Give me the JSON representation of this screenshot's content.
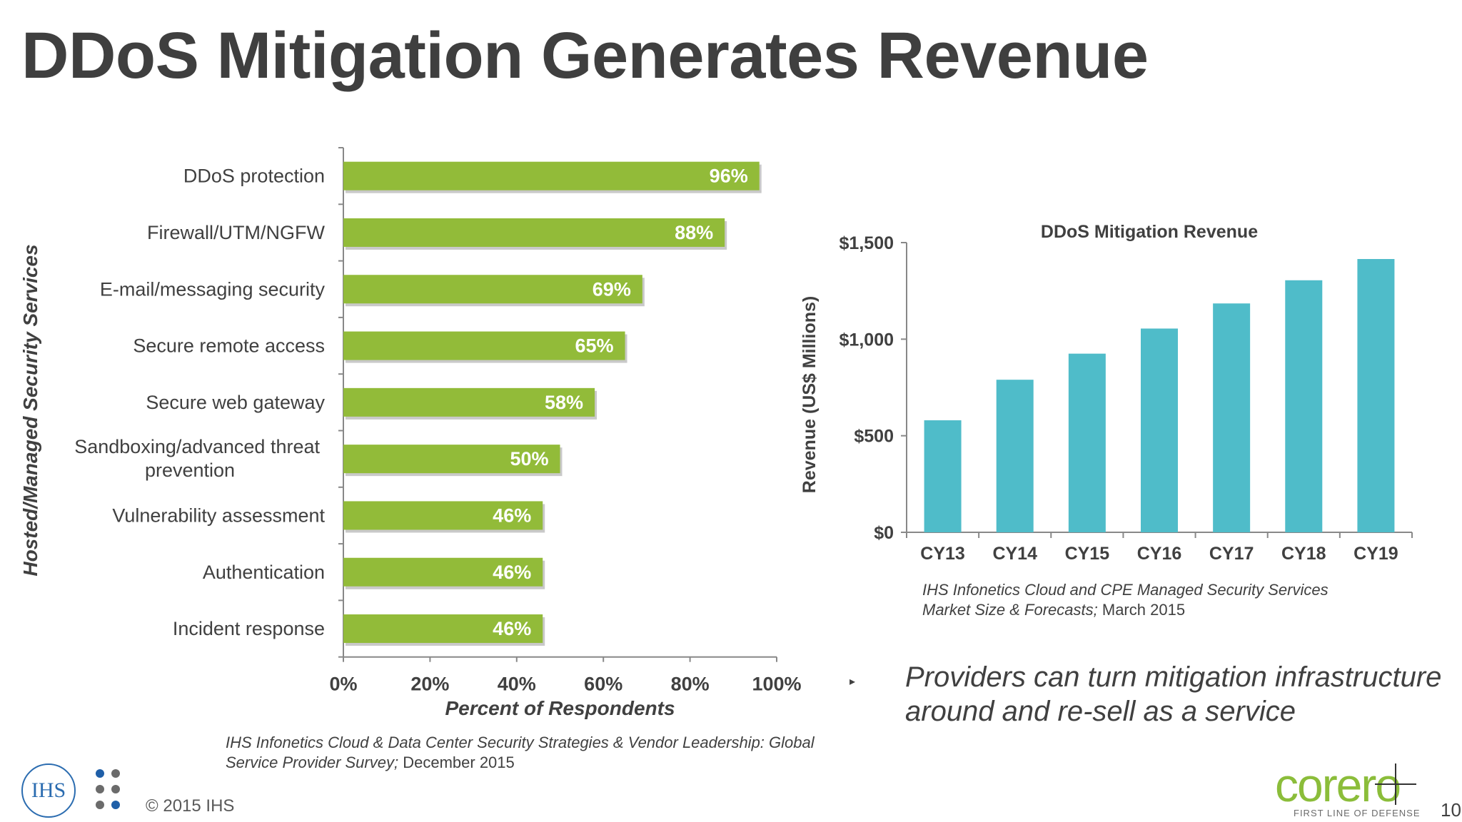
{
  "title": "DDoS Mitigation Generates Revenue",
  "chart_data": [
    {
      "type": "bar",
      "orientation": "horizontal",
      "categories": [
        "DDoS protection",
        "Firewall/UTM/NGFW",
        "E-mail/messaging security",
        "Secure remote access",
        "Secure web gateway",
        "Sandboxing/advanced threat prevention",
        "Vulnerability assessment",
        "Authentication",
        "Incident response"
      ],
      "values": [
        96,
        88,
        69,
        65,
        58,
        50,
        46,
        46,
        46
      ],
      "data_labels": [
        "96%",
        "88%",
        "69%",
        "65%",
        "58%",
        "50%",
        "46%",
        "46%",
        "46%"
      ],
      "xlabel": "Percent of Respondents",
      "ylabel": "Hosted/Managed Security Services",
      "xlim": [
        0,
        100
      ],
      "xticks": [
        "0%",
        "20%",
        "40%",
        "60%",
        "80%",
        "100%"
      ],
      "bar_color": "#92bb39"
    },
    {
      "type": "bar",
      "title": "DDoS Mitigation Revenue",
      "categories": [
        "CY13",
        "CY14",
        "CY15",
        "CY16",
        "CY17",
        "CY18",
        "CY19"
      ],
      "values": [
        580,
        790,
        925,
        1055,
        1185,
        1305,
        1415
      ],
      "ylabel": "Revenue (US$ Millions)",
      "ylim": [
        0,
        1500
      ],
      "yticks": [
        "$0",
        "$500",
        "$1,000",
        "$1,500"
      ],
      "bar_color": "#4fbcc9"
    }
  ],
  "sources": {
    "left_italic": "IHS Infonetics Cloud & Data Center Security Strategies & Vendor Leadership: Global Service Provider Survey;",
    "left_date": "December 2015",
    "right_italic": "IHS Infonetics Cloud and CPE Managed Security Services Market Size & Forecasts;",
    "right_date": "March 2015"
  },
  "bullet": "Providers can turn mitigation infrastructure around and re-sell as a service",
  "footer": {
    "copyright": "© 2015 IHS",
    "page_number": "10",
    "ihs_logo_text": "IHS",
    "corero_word": "corero",
    "corero_tagline": "FIRST LINE OF DEFENSE"
  }
}
